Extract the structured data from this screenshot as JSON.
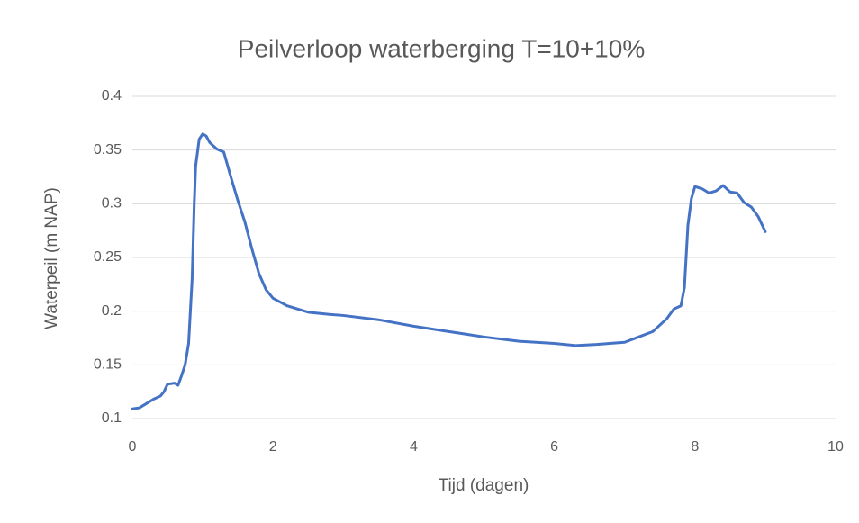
{
  "chart_data": {
    "type": "line",
    "title": "Peilverloop waterberging T=10+10%",
    "x_label": "Tijd (dagen)",
    "y_label": "Waterpeil (m NAP)",
    "x": [
      0,
      0.1,
      0.2,
      0.3,
      0.4,
      0.45,
      0.5,
      0.6,
      0.65,
      0.7,
      0.75,
      0.8,
      0.85,
      0.88,
      0.9,
      0.95,
      1.0,
      1.05,
      1.1,
      1.2,
      1.3,
      1.4,
      1.5,
      1.6,
      1.7,
      1.8,
      1.9,
      2.0,
      2.2,
      2.5,
      2.8,
      3.0,
      3.5,
      4.0,
      4.5,
      5.0,
      5.5,
      6.0,
      6.3,
      6.6,
      7.0,
      7.2,
      7.4,
      7.5,
      7.6,
      7.7,
      7.8,
      7.85,
      7.9,
      7.95,
      8.0,
      8.1,
      8.2,
      8.3,
      8.4,
      8.5,
      8.6,
      8.7,
      8.8,
      8.9,
      9.0
    ],
    "values": [
      0.109,
      0.11,
      0.114,
      0.118,
      0.121,
      0.125,
      0.132,
      0.133,
      0.131,
      0.14,
      0.15,
      0.17,
      0.23,
      0.3,
      0.335,
      0.36,
      0.365,
      0.363,
      0.357,
      0.351,
      0.348,
      0.325,
      0.303,
      0.283,
      0.258,
      0.235,
      0.22,
      0.212,
      0.205,
      0.199,
      0.197,
      0.196,
      0.192,
      0.186,
      0.181,
      0.176,
      0.172,
      0.17,
      0.168,
      0.169,
      0.171,
      0.176,
      0.181,
      0.187,
      0.193,
      0.202,
      0.205,
      0.222,
      0.28,
      0.305,
      0.316,
      0.314,
      0.31,
      0.312,
      0.317,
      0.311,
      0.31,
      0.301,
      0.297,
      0.288,
      0.274
    ],
    "color": "#4472c4",
    "xlim": [
      0,
      10
    ],
    "xticks": [
      0,
      2,
      4,
      6,
      8,
      10
    ],
    "ylim": [
      0.1,
      0.4
    ],
    "yticks": [
      0.1,
      0.15,
      0.2,
      0.25,
      0.3,
      0.35,
      0.4
    ],
    "grid": true
  }
}
